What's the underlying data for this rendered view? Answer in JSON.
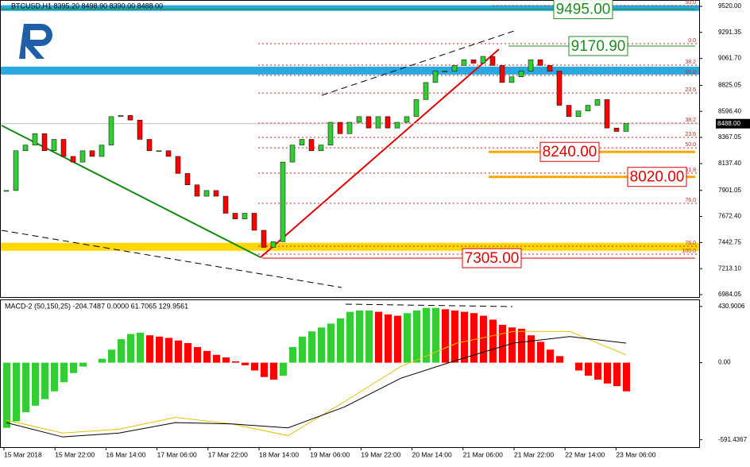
{
  "chart_data": [
    {
      "type": "candlestick",
      "title": "BTCUSD,H1  8395.20 8498.90 8390.00 8488.00",
      "up_color": "#32cd32",
      "down_color": "#ff0000",
      "values": [
        7900,
        8250,
        8300,
        8400,
        8250,
        8350,
        8200,
        8150,
        8250,
        8200,
        8300,
        8550,
        8560,
        8520,
        8350,
        8250,
        8250,
        8200,
        8050,
        7950,
        7850,
        7900,
        7850,
        7700,
        7650,
        7700,
        7550,
        7400,
        7450,
        8150,
        8300,
        8350,
        8250,
        8300,
        8500,
        8400,
        8500,
        8550,
        8450,
        8550,
        8450,
        8500,
        8550,
        8700,
        8850,
        8950,
        8950,
        9000,
        9050,
        9020,
        9080,
        9000,
        8850,
        8900,
        8950,
        9050,
        9000,
        8950,
        8650,
        8550,
        8600,
        8650,
        8700,
        8450,
        8420,
        8488
      ],
      "ylim": [
        6970,
        9562
      ],
      "yticks": [
        {
          "value": 9520,
          "label": "9520.00"
        },
        {
          "value": 9291.35,
          "label": "9291.35"
        },
        {
          "value": 9061.7,
          "label": "9061.70"
        },
        {
          "value": 8825.05,
          "label": "8825.05"
        },
        {
          "value": 8596.4,
          "label": "8596.40"
        },
        {
          "value": 8367.05,
          "label": "8367.05"
        },
        {
          "value": 8137.4,
          "label": "8137.40"
        },
        {
          "value": 7901.05,
          "label": "7901.05"
        },
        {
          "value": 7672.4,
          "label": "7672.40"
        },
        {
          "value": 7442.75,
          "label": "7442.75"
        },
        {
          "value": 7213.1,
          "label": "7213.10"
        },
        {
          "value": 6984.05,
          "label": "6984.05"
        }
      ],
      "current_price": {
        "value": 8488,
        "label": "8488.00"
      },
      "zones": [
        {
          "from": 9480,
          "to": 9530,
          "color": "#29a9e0"
        },
        {
          "from": 8920,
          "to": 8990,
          "color": "#29a9e0"
        },
        {
          "from": 7370,
          "to": 7440,
          "color": "#ffd700"
        }
      ],
      "levels": [
        {
          "value": 9495,
          "label": "9495.00",
          "color": "#1e8c1e"
        },
        {
          "value": 9170.9,
          "label": "9170.90",
          "color": "#1e8c1e"
        },
        {
          "value": 8240,
          "label": "8240.00",
          "color": "#e00000"
        },
        {
          "value": 8020,
          "label": "8020.00",
          "color": "#e00000"
        },
        {
          "value": 7305,
          "label": "7305.00",
          "color": "#e00000"
        }
      ],
      "fib_levels": [
        {
          "value": 9527,
          "label": "50.0"
        },
        {
          "value": 9192,
          "label": "0.0"
        },
        {
          "value": 9003,
          "label": "38.2"
        },
        {
          "value": 8912,
          "label": "50.0"
        },
        {
          "value": 8758,
          "label": "23.6"
        },
        {
          "value": 8493,
          "label": "38.2"
        },
        {
          "value": 8367,
          "label": "23.6"
        },
        {
          "value": 8276,
          "label": "50.0"
        },
        {
          "value": 8053,
          "label": "61.8"
        },
        {
          "value": 7787,
          "label": "76.0"
        },
        {
          "value": 7410,
          "label": "76.0"
        },
        {
          "value": 7340,
          "label": "100.0"
        }
      ]
    },
    {
      "type": "bar",
      "title": "MACD-2 (50,150,25) -204.7487 0.0000 61.7065 129.9561",
      "up_color": "#32cd32",
      "down_color": "#ff0000",
      "values": [
        -500,
        -450,
        -380,
        -330,
        -280,
        -220,
        -150,
        -80,
        -30,
        0,
        30,
        100,
        180,
        220,
        230,
        210,
        200,
        190,
        170,
        150,
        120,
        90,
        60,
        40,
        10,
        -20,
        -60,
        -110,
        -130,
        -100,
        120,
        200,
        240,
        270,
        300,
        340,
        390,
        400,
        400,
        390,
        370,
        360,
        380,
        400,
        420,
        420,
        410,
        400,
        390,
        380,
        360,
        330,
        290,
        270,
        260,
        210,
        160,
        100,
        50,
        0,
        -60,
        -100,
        -130,
        -160,
        -180,
        -220
      ],
      "series": [
        {
          "color": "#e6c200",
          "values": [
            -440,
            -540,
            -510,
            -420,
            -470,
            -560,
            -300,
            -30,
            150,
            240,
            240,
            60
          ]
        },
        {
          "color": "#000000",
          "values": [
            -460,
            -570,
            -540,
            -460,
            -470,
            -500,
            -340,
            -120,
            20,
            150,
            200,
            150
          ]
        }
      ],
      "ylim": [
        -642,
        473
      ],
      "yticks": [
        {
          "value": 430.9006,
          "label": "430.9006"
        },
        {
          "value": 0,
          "label": "0.00"
        },
        {
          "value": -591.4367,
          "label": "-591.4367"
        }
      ],
      "x_labels": [
        "15 Mar 2018",
        "15 Mar 22:00",
        "16 Mar 14:00",
        "17 Mar 06:00",
        "17 Mar 22:00",
        "18 Mar 14:00",
        "19 Mar 06:00",
        "19 Mar 22:00",
        "20 Mar 14:00",
        "21 Mar 06:00",
        "21 Mar 22:00",
        "22 Mar 14:00",
        "23 Mar 06:00"
      ]
    }
  ]
}
